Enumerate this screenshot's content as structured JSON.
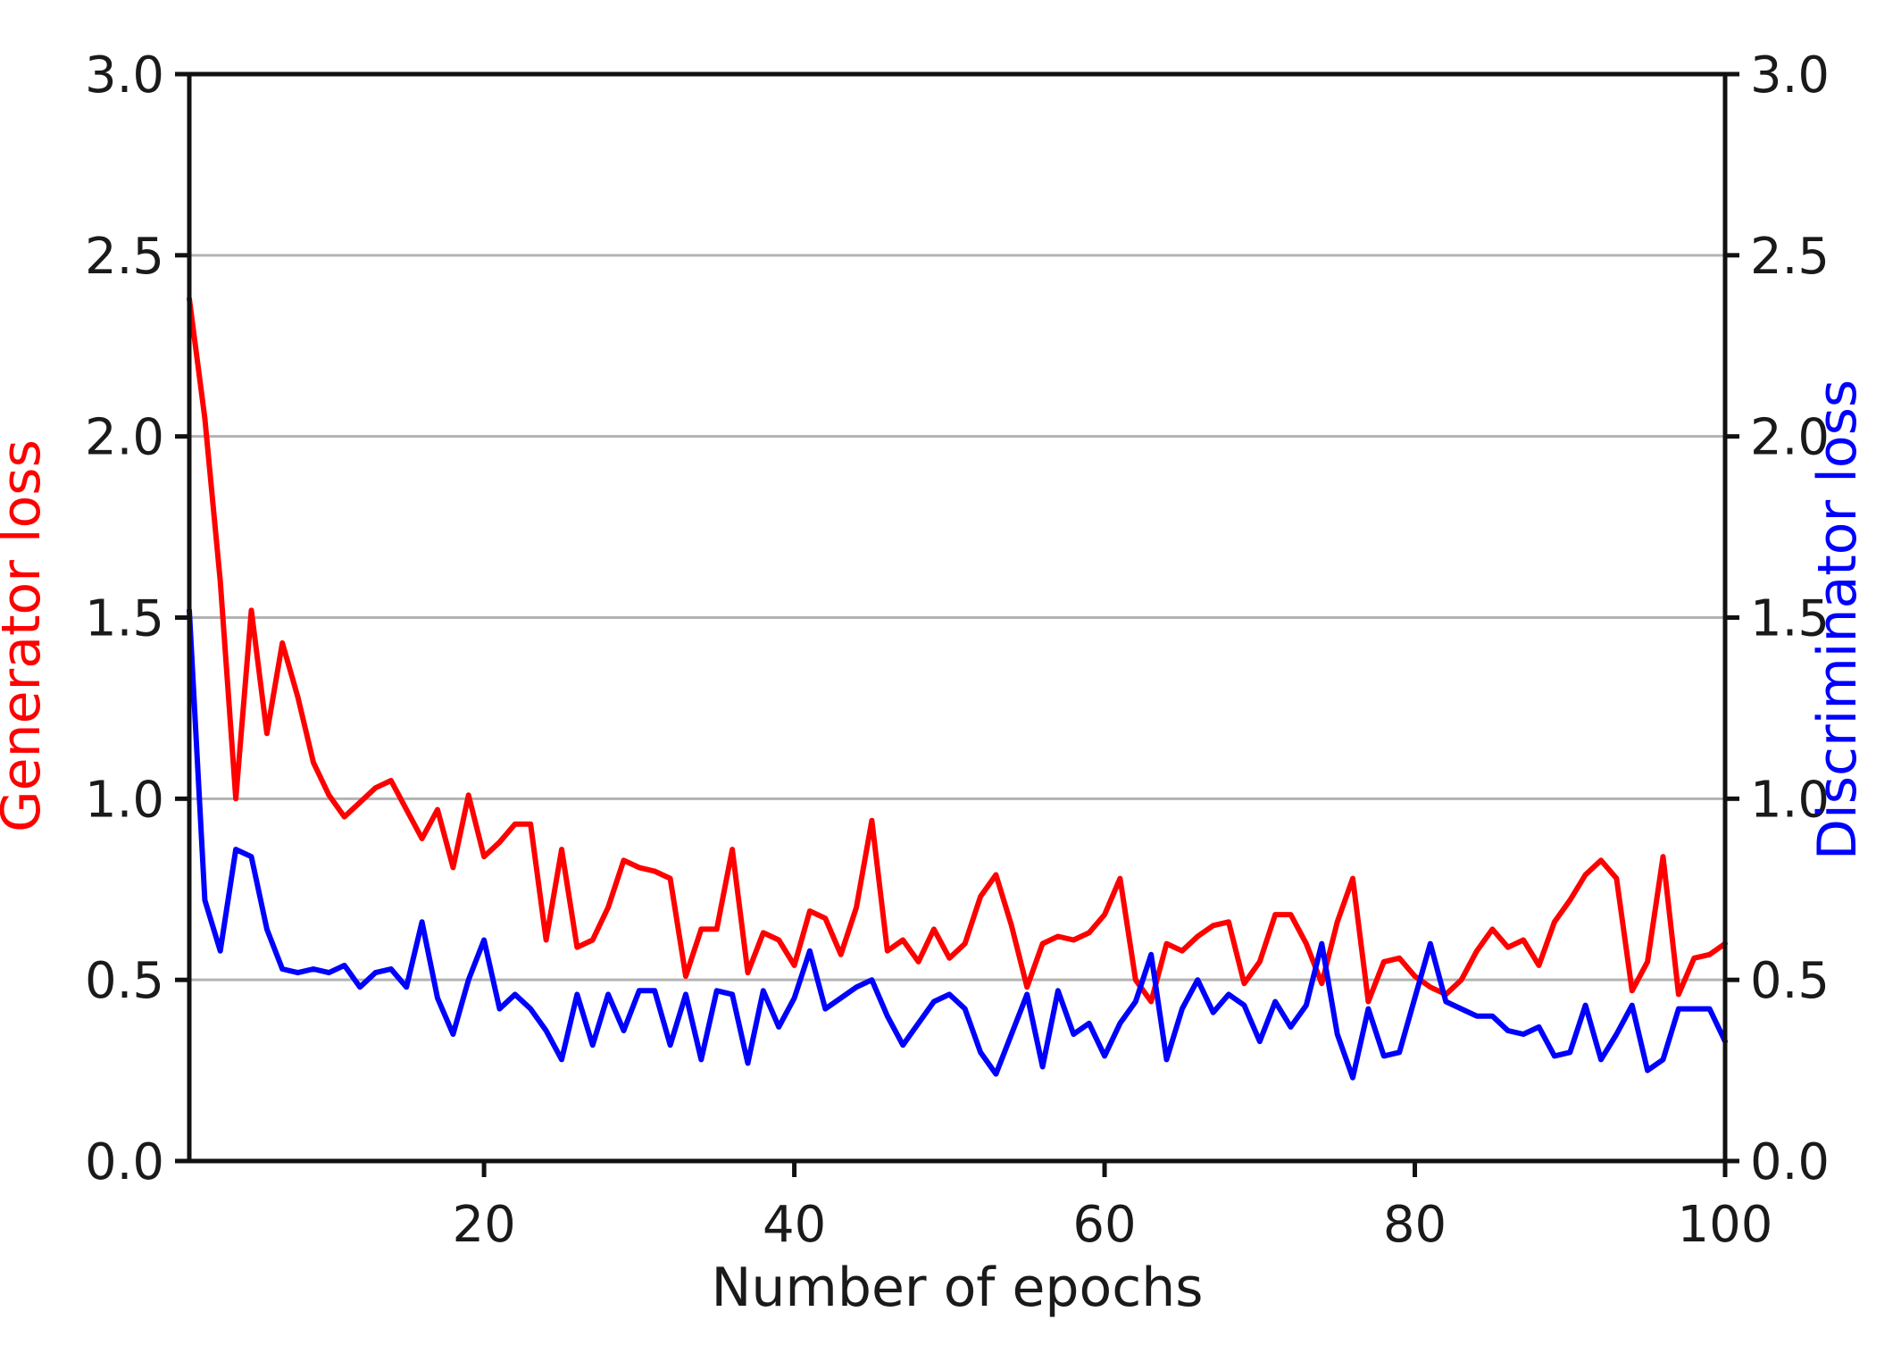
{
  "chart_data": {
    "type": "line",
    "title": "",
    "xlabel": "Number of epochs",
    "ylabel_left": "Generator loss",
    "ylabel_right": "Discriminator loss",
    "x": {
      "start": 1,
      "end": 100,
      "step": 1
    },
    "xlim": [
      1,
      100
    ],
    "ylim_left": [
      0.0,
      3.0
    ],
    "ylim_right": [
      0.0,
      3.0
    ],
    "x_tick_labels": [
      "20",
      "40",
      "60",
      "80",
      "100"
    ],
    "y_tick_labels": [
      "0.0",
      "0.5",
      "1.0",
      "1.5",
      "2.0",
      "2.5",
      "3.0"
    ],
    "grid": "horizontal-only",
    "legend": "none",
    "colors": {
      "generator": "#ff0000",
      "discriminator": "#0000ff",
      "grid": "#b3b3b3",
      "spine": "#111111",
      "tick_text": "#1a1a1a",
      "background": "#ffffff"
    },
    "series": [
      {
        "name": "Generator loss",
        "axis": "left",
        "color": "#ff0000",
        "values": [
          2.38,
          2.05,
          1.6,
          1.0,
          1.52,
          1.18,
          1.43,
          1.28,
          1.1,
          1.01,
          0.95,
          0.99,
          1.03,
          1.05,
          0.97,
          0.89,
          0.97,
          0.81,
          1.01,
          0.84,
          0.88,
          0.93,
          0.93,
          0.61,
          0.86,
          0.59,
          0.61,
          0.7,
          0.83,
          0.81,
          0.8,
          0.78,
          0.51,
          0.64,
          0.64,
          0.86,
          0.52,
          0.63,
          0.61,
          0.54,
          0.69,
          0.67,
          0.57,
          0.7,
          0.94,
          0.58,
          0.61,
          0.55,
          0.64,
          0.56,
          0.6,
          0.73,
          0.79,
          0.65,
          0.48,
          0.6,
          0.62,
          0.61,
          0.63,
          0.68,
          0.78,
          0.5,
          0.44,
          0.6,
          0.58,
          0.62,
          0.65,
          0.66,
          0.49,
          0.55,
          0.68,
          0.68,
          0.6,
          0.49,
          0.66,
          0.78,
          0.44,
          0.55,
          0.56,
          0.51,
          0.48,
          0.46,
          0.5,
          0.58,
          0.64,
          0.59,
          0.61,
          0.54,
          0.66,
          0.72,
          0.79,
          0.83,
          0.78,
          0.47,
          0.55,
          0.84,
          0.46,
          0.56,
          0.57,
          0.6
        ]
      },
      {
        "name": "Discriminator loss",
        "axis": "right",
        "color": "#0000ff",
        "values": [
          1.52,
          0.72,
          0.58,
          0.86,
          0.84,
          0.64,
          0.53,
          0.52,
          0.53,
          0.52,
          0.54,
          0.48,
          0.52,
          0.53,
          0.48,
          0.66,
          0.45,
          0.35,
          0.5,
          0.61,
          0.42,
          0.46,
          0.42,
          0.36,
          0.28,
          0.46,
          0.32,
          0.46,
          0.36,
          0.47,
          0.47,
          0.32,
          0.46,
          0.28,
          0.47,
          0.46,
          0.27,
          0.47,
          0.37,
          0.45,
          0.58,
          0.42,
          0.45,
          0.48,
          0.5,
          0.4,
          0.32,
          0.38,
          0.44,
          0.46,
          0.42,
          0.3,
          0.24,
          0.35,
          0.46,
          0.26,
          0.47,
          0.35,
          0.38,
          0.29,
          0.38,
          0.44,
          0.57,
          0.28,
          0.42,
          0.5,
          0.41,
          0.46,
          0.43,
          0.33,
          0.44,
          0.37,
          0.43,
          0.6,
          0.35,
          0.23,
          0.42,
          0.29,
          0.3,
          0.45,
          0.6,
          0.44,
          0.42,
          0.4,
          0.4,
          0.36,
          0.35,
          0.37,
          0.29,
          0.3,
          0.43,
          0.28,
          0.35,
          0.43,
          0.25,
          0.28,
          0.42,
          0.42,
          0.42,
          0.33
        ]
      }
    ]
  }
}
